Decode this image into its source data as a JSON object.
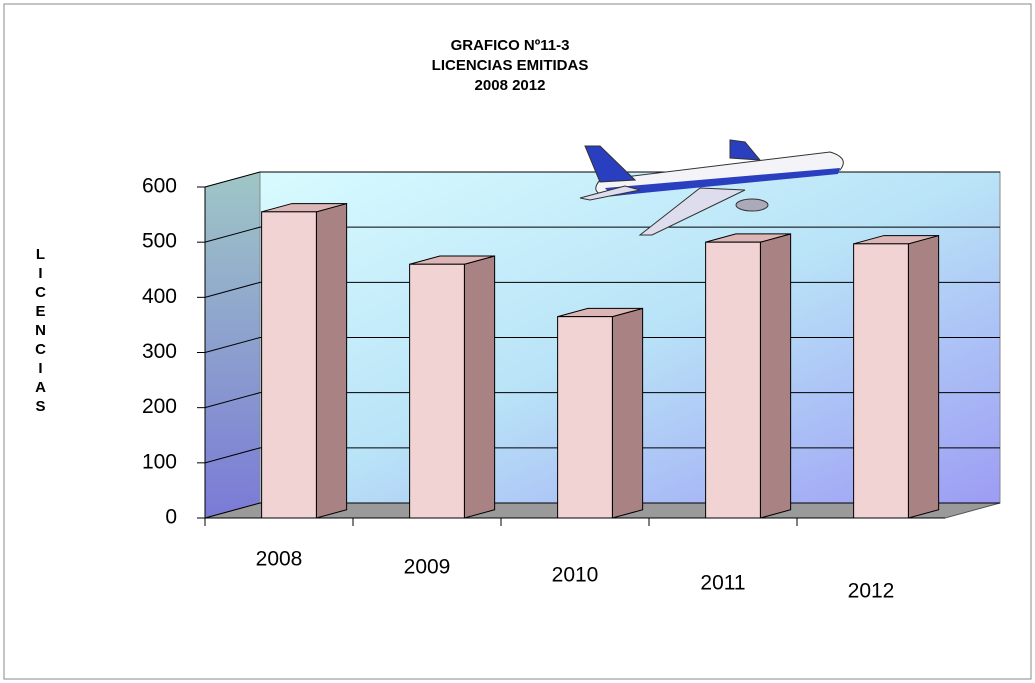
{
  "chart_data": {
    "type": "bar",
    "title": [
      "GRAFICO Nº11-3",
      "LICENCIAS EMITIDAS",
      "2008 2012"
    ],
    "y_label": "LICENCIAS",
    "categories": [
      "2008",
      "2009",
      "2010",
      "2011",
      "2012"
    ],
    "values": [
      555,
      460,
      365,
      500,
      497
    ],
    "color": "#f2d3d3",
    "ylim": [
      0,
      600
    ],
    "yticks": [
      0,
      100,
      200,
      300,
      400,
      500,
      600
    ],
    "grid": true
  }
}
